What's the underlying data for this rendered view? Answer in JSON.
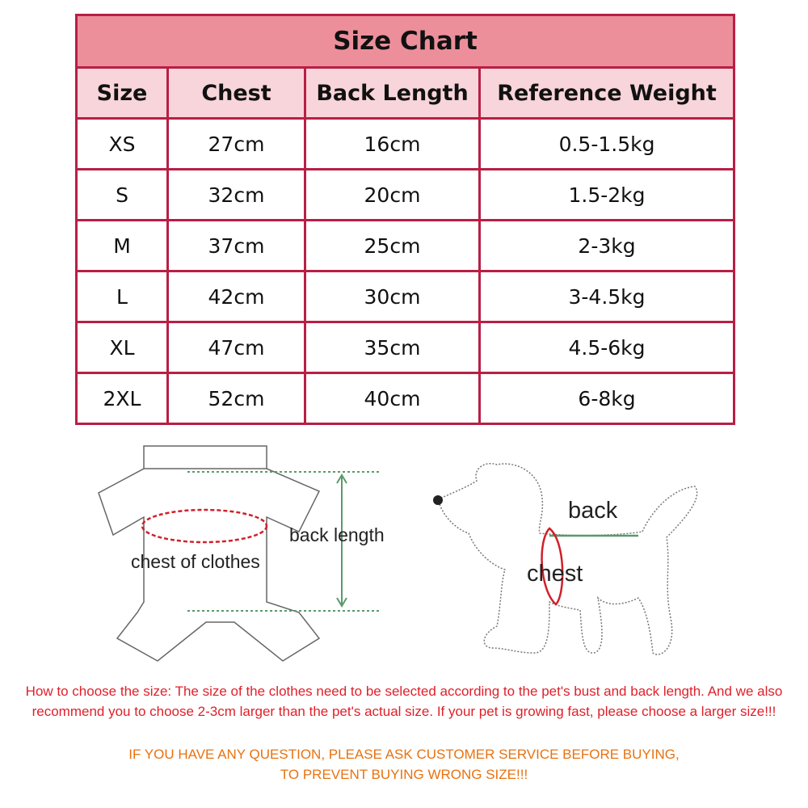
{
  "title": "Size Chart",
  "headers": [
    "Size",
    "Chest",
    "Back Length",
    "Reference Weight"
  ],
  "rows": [
    [
      "XS",
      "27cm",
      "16cm",
      "0.5-1.5kg"
    ],
    [
      "S",
      "32cm",
      "20cm",
      "1.5-2kg"
    ],
    [
      "M",
      "37cm",
      "25cm",
      "2-3kg"
    ],
    [
      "L",
      "42cm",
      "30cm",
      "3-4.5kg"
    ],
    [
      "XL",
      "47cm",
      "35cm",
      "4.5-6kg"
    ],
    [
      "2XL",
      "52cm",
      "40cm",
      "6-8kg"
    ]
  ],
  "diagram": {
    "back_length": "back length",
    "chest_of_clothes": "chest of clothes",
    "back": "back",
    "chest": "chest"
  },
  "notes": {
    "how_to": "How to choose the size: The size of the clothes need to be selected according to the pet's bust and back length. And we also recommend you to choose 2-3cm larger than the pet's actual size. If your pet is growing fast, please choose a larger size!!!",
    "warning_1": "IF YOU HAVE ANY QUESTION, PLEASE ASK CUSTOMER SERVICE BEFORE BUYING,",
    "warning_2": "TO PREVENT BUYING WRONG SIZE!!!"
  },
  "colors": {
    "border": "#b81f45",
    "title_bg": "#ec8f9b",
    "header_bg": "#f8d5da",
    "note": "#e0202a",
    "warning": "#e8720f",
    "measure_green": "#5a9a6a",
    "measure_red": "#d0202a"
  }
}
